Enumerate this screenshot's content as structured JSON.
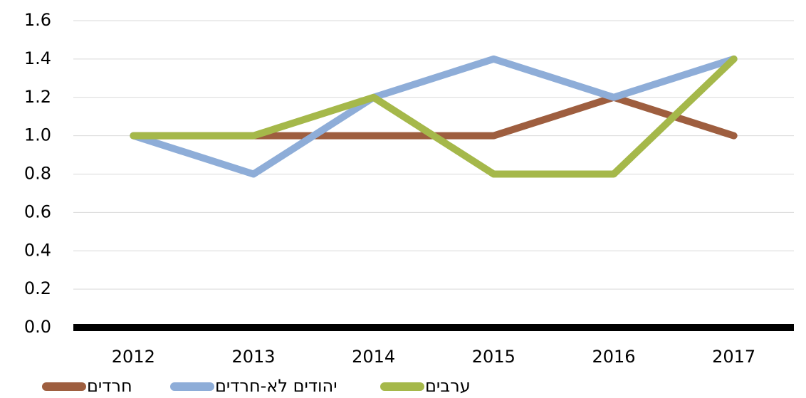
{
  "chart_data": {
    "type": "line",
    "categories": [
      "2012",
      "2013",
      "2014",
      "2015",
      "2016",
      "2017"
    ],
    "series": [
      {
        "name": "חרדים",
        "color": "#9e5e3f",
        "values": [
          1.0,
          1.0,
          1.0,
          1.0,
          1.2,
          1.0
        ]
      },
      {
        "name": "יהודים לא-חרדים",
        "color": "#8eadd8",
        "values": [
          1.0,
          0.8,
          1.2,
          1.4,
          1.2,
          1.4
        ]
      },
      {
        "name": "ערבים",
        "color": "#a5b84a",
        "values": [
          1.0,
          1.0,
          1.2,
          0.8,
          0.8,
          1.4
        ]
      }
    ],
    "ylim": [
      0,
      1.6
    ],
    "yticks": [
      {
        "value": 0,
        "label": "0.0"
      },
      0.2,
      0.4,
      0.6,
      0.8,
      {
        "value": 1,
        "label": "1.0"
      },
      1.2,
      1.4,
      1.6
    ],
    "grid": true,
    "legend": "bottom"
  }
}
